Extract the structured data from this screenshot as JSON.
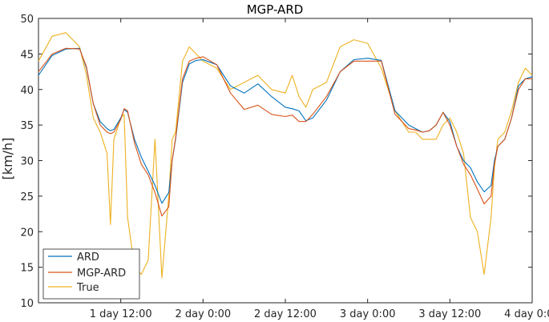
{
  "chart_data": {
    "type": "line",
    "title": "MGP-ARD",
    "xlabel": "",
    "ylabel": "[km/h]",
    "xlim": [
      "1 day 0:00",
      "4 day 0:00"
    ],
    "ylim": [
      10,
      50
    ],
    "yticks": [
      10,
      15,
      20,
      25,
      30,
      35,
      40,
      45,
      50
    ],
    "xticks": [
      {
        "label": "1 day 12:00",
        "hours": 12
      },
      {
        "label": "2 day 0:00",
        "hours": 24
      },
      {
        "label": "2 day 12:00",
        "hours": 36
      },
      {
        "label": "3 day 0:00",
        "hours": 48
      },
      {
        "label": "3 day 12:00",
        "hours": 60
      },
      {
        "label": "4 day 0:00",
        "hours": 72
      }
    ],
    "grid": false,
    "legend_position": "bottom-left",
    "x_hours": [
      0,
      2,
      4,
      6,
      7,
      8,
      9,
      10,
      10.5,
      11,
      12,
      12.5,
      13,
      14,
      15,
      16,
      17,
      18,
      19,
      19.5,
      20,
      21,
      22,
      23,
      24,
      26,
      28,
      30,
      32,
      34,
      36,
      37,
      38,
      39,
      40,
      42,
      44,
      46,
      48,
      50,
      52,
      54,
      55,
      56,
      57,
      58,
      59,
      60,
      61,
      62,
      63,
      64,
      65,
      66,
      66.5,
      67,
      68,
      69,
      70,
      71,
      72
    ],
    "series": [
      {
        "name": "ARD",
        "color": "#0072BD",
        "values": [
          42,
          44.8,
          45.7,
          45.8,
          43,
          38,
          35.5,
          34.5,
          34.2,
          34.4,
          36,
          37.2,
          36.8,
          33,
          30.5,
          28.5,
          26.5,
          24,
          25.5,
          30,
          33,
          41,
          43.6,
          44.1,
          44.2,
          43.5,
          40.5,
          39.5,
          40.8,
          39,
          37.5,
          37.3,
          37,
          35.6,
          36,
          38.5,
          42.5,
          44.2,
          44.4,
          44.1,
          37,
          35,
          34.5,
          34,
          34.2,
          35,
          36.8,
          35.5,
          32,
          30,
          29,
          27,
          25.6,
          26.5,
          30,
          32,
          33,
          36,
          40.5,
          41.5,
          41.8
        ]
      },
      {
        "name": "MGP-ARD",
        "color": "#D95319",
        "values": [
          42.5,
          45,
          45.8,
          45.7,
          43.2,
          38,
          35,
          34,
          33.8,
          34,
          35.8,
          37.3,
          37,
          32.5,
          29.5,
          28,
          25.5,
          22.2,
          23.5,
          30,
          33.2,
          41.5,
          44,
          44.4,
          44.6,
          43.5,
          39.5,
          37.2,
          37.8,
          36.5,
          36.2,
          36.4,
          35.5,
          35.5,
          36.5,
          39,
          42.5,
          44,
          44,
          44,
          36.5,
          34.5,
          34.3,
          34,
          34.2,
          35,
          36.8,
          35,
          32,
          29.5,
          28,
          26,
          23.9,
          25,
          29.5,
          32,
          33,
          36,
          40,
          41.5,
          41.5
        ]
      },
      {
        "name": "True",
        "color": "#EDB120",
        "values": [
          44,
          47.5,
          48,
          46,
          42,
          36,
          34,
          31,
          21,
          33,
          36,
          36.5,
          22,
          15,
          14,
          16,
          33,
          13.5,
          25,
          33,
          34,
          44,
          46,
          45,
          44,
          43,
          40,
          41,
          42,
          40,
          39.5,
          42,
          39,
          37.5,
          40,
          41,
          46,
          47,
          46.5,
          43,
          37,
          34,
          34,
          33,
          33,
          33,
          35,
          36,
          34,
          31,
          22,
          20,
          14,
          22,
          29,
          33,
          34,
          37,
          41,
          43,
          42
        ]
      }
    ]
  }
}
